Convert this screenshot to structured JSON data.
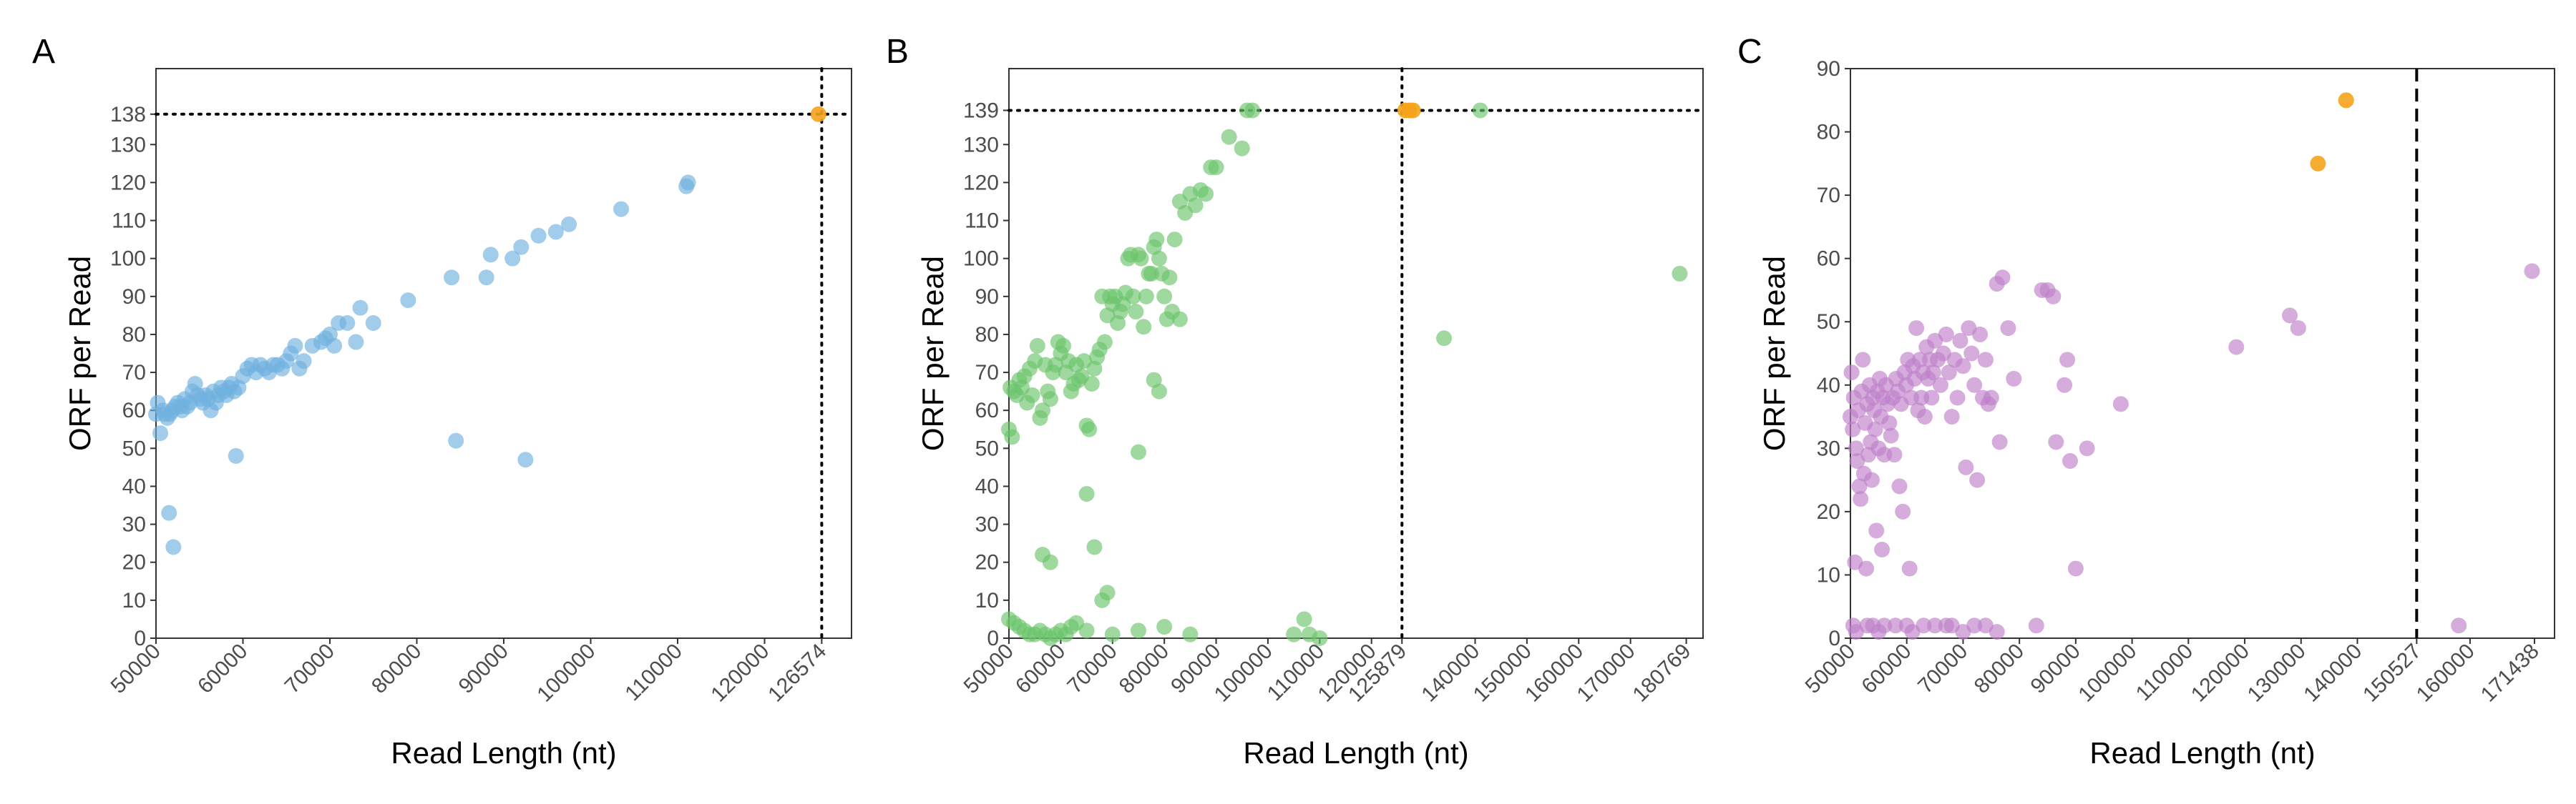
{
  "chart_data": [
    {
      "type": "scatter",
      "panel": "A",
      "xlabel": "Read Length (nt)",
      "ylabel": "ORF per Read",
      "xlim": [
        50000,
        130000
      ],
      "ylim": [
        0,
        150
      ],
      "x_ticks": [
        "50000",
        "60000",
        "70000",
        "80000",
        "90000",
        "100000",
        "110000",
        "120000",
        "126574"
      ],
      "x_tick_values": [
        50000,
        60000,
        70000,
        80000,
        90000,
        100000,
        110000,
        120000,
        126574
      ],
      "y_ticks": [
        "0",
        "10",
        "20",
        "30",
        "40",
        "50",
        "60",
        "70",
        "80",
        "90",
        "100",
        "110",
        "120",
        "130",
        "138"
      ],
      "y_tick_values": [
        0,
        10,
        20,
        30,
        40,
        50,
        60,
        70,
        80,
        90,
        100,
        110,
        120,
        130,
        138
      ],
      "ref_x": 126574,
      "ref_y": 138,
      "ref_style": "dotted",
      "colors": {
        "points": "#6fb0de",
        "highlight": "#f5a31a"
      },
      "highlight_points": [
        [
          126200,
          138
        ]
      ],
      "points": [
        [
          50000,
          59
        ],
        [
          50200,
          62
        ],
        [
          50500,
          54
        ],
        [
          50800,
          60
        ],
        [
          51000,
          59
        ],
        [
          51300,
          58
        ],
        [
          51600,
          59
        ],
        [
          51900,
          60
        ],
        [
          52200,
          61
        ],
        [
          52500,
          62
        ],
        [
          52800,
          61
        ],
        [
          53000,
          60
        ],
        [
          53300,
          63
        ],
        [
          53600,
          61
        ],
        [
          53900,
          62
        ],
        [
          54200,
          65
        ],
        [
          54500,
          67
        ],
        [
          54800,
          64
        ],
        [
          55100,
          63
        ],
        [
          55400,
          62
        ],
        [
          55700,
          64
        ],
        [
          56000,
          63
        ],
        [
          56300,
          60
        ],
        [
          56600,
          65
        ],
        [
          56900,
          62
        ],
        [
          57200,
          64
        ],
        [
          57500,
          66
        ],
        [
          57800,
          65
        ],
        [
          58100,
          64
        ],
        [
          58400,
          66
        ],
        [
          58700,
          67
        ],
        [
          59000,
          65
        ],
        [
          59500,
          66
        ],
        [
          60000,
          69
        ],
        [
          60500,
          71
        ],
        [
          61000,
          72
        ],
        [
          61500,
          70
        ],
        [
          62000,
          72
        ],
        [
          62500,
          71
        ],
        [
          63000,
          70
        ],
        [
          63500,
          72
        ],
        [
          64000,
          72
        ],
        [
          64500,
          71
        ],
        [
          65000,
          73
        ],
        [
          65500,
          75
        ],
        [
          66000,
          77
        ],
        [
          66500,
          71
        ],
        [
          67000,
          73
        ],
        [
          68000,
          77
        ],
        [
          69000,
          78
        ],
        [
          69500,
          79
        ],
        [
          70000,
          80
        ],
        [
          70500,
          77
        ],
        [
          71000,
          83
        ],
        [
          72000,
          83
        ],
        [
          73000,
          78
        ],
        [
          73500,
          87
        ],
        [
          75000,
          83
        ],
        [
          79000,
          89
        ],
        [
          84000,
          95
        ],
        [
          88500,
          101
        ],
        [
          88000,
          95
        ],
        [
          91000,
          100
        ],
        [
          92000,
          103
        ],
        [
          94000,
          106
        ],
        [
          96000,
          107
        ],
        [
          97500,
          109
        ],
        [
          103500,
          113
        ],
        [
          111000,
          119
        ],
        [
          111200,
          120
        ],
        [
          51500,
          33
        ],
        [
          52000,
          24
        ],
        [
          59200,
          48
        ],
        [
          84500,
          52
        ],
        [
          92500,
          47
        ]
      ]
    },
    {
      "type": "scatter",
      "panel": "B",
      "xlabel": "Read Length (nt)",
      "ylabel": "ORF per Read",
      "xlim": [
        50000,
        184000
      ],
      "ylim": [
        0,
        150
      ],
      "x_ticks": [
        "50000",
        "60000",
        "70000",
        "80000",
        "90000",
        "100000",
        "110000",
        "120000",
        "125879",
        "140000",
        "150000",
        "160000",
        "170000",
        "180769"
      ],
      "x_tick_values": [
        50000,
        60000,
        70000,
        80000,
        90000,
        100000,
        110000,
        120000,
        125879,
        140000,
        150000,
        160000,
        170000,
        180769
      ],
      "y_ticks": [
        "0",
        "10",
        "20",
        "30",
        "40",
        "50",
        "60",
        "70",
        "80",
        "90",
        "100",
        "110",
        "120",
        "130",
        "139"
      ],
      "y_tick_values": [
        0,
        10,
        20,
        30,
        40,
        50,
        60,
        70,
        80,
        90,
        100,
        110,
        120,
        130,
        139
      ],
      "ref_x": 125879,
      "ref_y": 139,
      "ref_style": "dotted",
      "colors": {
        "points": "#6cc46c",
        "highlight": "#f5a31a"
      },
      "highlight_points": [
        [
          126500,
          139
        ],
        [
          127300,
          139
        ],
        [
          128000,
          139
        ]
      ],
      "points": [
        [
          50000,
          55
        ],
        [
          50300,
          66
        ],
        [
          50600,
          53
        ],
        [
          51000,
          65
        ],
        [
          51500,
          64
        ],
        [
          52000,
          68
        ],
        [
          52500,
          66
        ],
        [
          53000,
          69
        ],
        [
          53500,
          62
        ],
        [
          54000,
          71
        ],
        [
          54500,
          64
        ],
        [
          55000,
          73
        ],
        [
          55500,
          77
        ],
        [
          56000,
          58
        ],
        [
          56500,
          60
        ],
        [
          57000,
          72
        ],
        [
          57500,
          65
        ],
        [
          58000,
          63
        ],
        [
          58500,
          70
        ],
        [
          59000,
          72
        ],
        [
          59500,
          78
        ],
        [
          60000,
          75
        ],
        [
          60500,
          77
        ],
        [
          61000,
          70
        ],
        [
          61500,
          73
        ],
        [
          62000,
          65
        ],
        [
          62500,
          67
        ],
        [
          63000,
          72
        ],
        [
          63500,
          68
        ],
        [
          64000,
          69
        ],
        [
          64500,
          73
        ],
        [
          65000,
          56
        ],
        [
          65500,
          55
        ],
        [
          66000,
          67
        ],
        [
          66500,
          71
        ],
        [
          67000,
          74
        ],
        [
          67500,
          76
        ],
        [
          68000,
          90
        ],
        [
          68500,
          78
        ],
        [
          69000,
          85
        ],
        [
          69500,
          90
        ],
        [
          70000,
          88
        ],
        [
          70500,
          90
        ],
        [
          71000,
          83
        ],
        [
          71500,
          86
        ],
        [
          72000,
          88
        ],
        [
          72500,
          91
        ],
        [
          73000,
          100
        ],
        [
          73500,
          101
        ],
        [
          74000,
          90
        ],
        [
          74500,
          86
        ],
        [
          75000,
          101
        ],
        [
          75500,
          100
        ],
        [
          76000,
          82
        ],
        [
          76500,
          90
        ],
        [
          77000,
          96
        ],
        [
          77500,
          96
        ],
        [
          78000,
          103
        ],
        [
          78500,
          105
        ],
        [
          79000,
          100
        ],
        [
          79500,
          96
        ],
        [
          80000,
          90
        ],
        [
          80500,
          84
        ],
        [
          81000,
          95
        ],
        [
          81500,
          86
        ],
        [
          82000,
          105
        ],
        [
          83000,
          115
        ],
        [
          84000,
          112
        ],
        [
          85000,
          117
        ],
        [
          86000,
          114
        ],
        [
          87000,
          118
        ],
        [
          88000,
          117
        ],
        [
          89000,
          124
        ],
        [
          90000,
          124
        ],
        [
          92500,
          132
        ],
        [
          95000,
          129
        ],
        [
          96000,
          139
        ],
        [
          97000,
          139
        ],
        [
          141000,
          139
        ],
        [
          134000,
          79
        ],
        [
          179500,
          96
        ],
        [
          75000,
          49
        ],
        [
          78000,
          68
        ],
        [
          79000,
          65
        ],
        [
          83000,
          84
        ],
        [
          65000,
          38
        ],
        [
          66500,
          24
        ],
        [
          56500,
          22
        ],
        [
          58000,
          20
        ],
        [
          69000,
          12
        ],
        [
          68000,
          10
        ],
        [
          50000,
          5
        ],
        [
          51000,
          4
        ],
        [
          52000,
          3
        ],
        [
          53000,
          2
        ],
        [
          54000,
          1
        ],
        [
          55000,
          1
        ],
        [
          56000,
          2
        ],
        [
          57000,
          1
        ],
        [
          58000,
          0
        ],
        [
          59000,
          1
        ],
        [
          60000,
          2
        ],
        [
          61000,
          1
        ],
        [
          62000,
          3
        ],
        [
          63000,
          4
        ],
        [
          65000,
          2
        ],
        [
          70000,
          1
        ],
        [
          75000,
          2
        ],
        [
          80000,
          3
        ],
        [
          85000,
          1
        ],
        [
          105000,
          1
        ],
        [
          107000,
          5
        ],
        [
          108000,
          1
        ],
        [
          110000,
          0
        ]
      ]
    },
    {
      "type": "scatter",
      "panel": "C",
      "xlabel": "Read Length (nt)",
      "ylabel": "ORF per Read",
      "xlim": [
        50000,
        175000
      ],
      "ylim": [
        0,
        90
      ],
      "x_ticks": [
        "50000",
        "60000",
        "70000",
        "80000",
        "90000",
        "100000",
        "110000",
        "120000",
        "130000",
        "140000",
        "150527",
        "160000",
        "171438"
      ],
      "x_tick_values": [
        50000,
        60000,
        70000,
        80000,
        90000,
        100000,
        110000,
        120000,
        130000,
        140000,
        150527,
        160000,
        171438
      ],
      "y_ticks": [
        "0",
        "10",
        "20",
        "30",
        "40",
        "50",
        "60",
        "70",
        "80",
        "90"
      ],
      "y_tick_values": [
        0,
        10,
        20,
        30,
        40,
        50,
        60,
        70,
        80,
        90
      ],
      "ref_x": 150527,
      "ref_style": "dashed",
      "colors": {
        "points": "#bf7fc9",
        "highlight": "#f5a31a"
      },
      "highlight_points": [
        [
          133000,
          75
        ],
        [
          138000,
          85
        ]
      ],
      "points": [
        [
          50000,
          35
        ],
        [
          50200,
          42
        ],
        [
          50400,
          33
        ],
        [
          50600,
          38
        ],
        [
          50800,
          12
        ],
        [
          51000,
          30
        ],
        [
          51200,
          28
        ],
        [
          51400,
          36
        ],
        [
          51600,
          24
        ],
        [
          51800,
          22
        ],
        [
          52000,
          39
        ],
        [
          52200,
          44
        ],
        [
          52400,
          26
        ],
        [
          52600,
          34
        ],
        [
          52800,
          11
        ],
        [
          53000,
          37
        ],
        [
          53200,
          29
        ],
        [
          53400,
          40
        ],
        [
          53600,
          31
        ],
        [
          53800,
          25
        ],
        [
          54000,
          38
        ],
        [
          54200,
          36
        ],
        [
          54400,
          33
        ],
        [
          54600,
          17
        ],
        [
          54800,
          39
        ],
        [
          55000,
          30
        ],
        [
          55200,
          41
        ],
        [
          55400,
          35
        ],
        [
          55600,
          14
        ],
        [
          55800,
          38
        ],
        [
          56000,
          29
        ],
        [
          56300,
          40
        ],
        [
          56600,
          37
        ],
        [
          56900,
          34
        ],
        [
          57200,
          32
        ],
        [
          57500,
          38
        ],
        [
          57800,
          29
        ],
        [
          58100,
          41
        ],
        [
          58400,
          39
        ],
        [
          58700,
          24
        ],
        [
          59000,
          37
        ],
        [
          59300,
          20
        ],
        [
          59600,
          42
        ],
        [
          59900,
          40
        ],
        [
          60200,
          44
        ],
        [
          60500,
          11
        ],
        [
          60800,
          38
        ],
        [
          61100,
          43
        ],
        [
          61400,
          41
        ],
        [
          61700,
          49
        ],
        [
          62000,
          36
        ],
        [
          62300,
          44
        ],
        [
          62600,
          38
        ],
        [
          62900,
          42
        ],
        [
          63200,
          35
        ],
        [
          63500,
          46
        ],
        [
          63800,
          41
        ],
        [
          64100,
          44
        ],
        [
          64400,
          38
        ],
        [
          64700,
          42
        ],
        [
          65000,
          47
        ],
        [
          65500,
          44
        ],
        [
          66000,
          40
        ],
        [
          66500,
          45
        ],
        [
          67000,
          48
        ],
        [
          67500,
          42
        ],
        [
          68000,
          35
        ],
        [
          68500,
          44
        ],
        [
          69000,
          38
        ],
        [
          69500,
          47
        ],
        [
          70000,
          43
        ],
        [
          70500,
          27
        ],
        [
          71000,
          49
        ],
        [
          71500,
          45
        ],
        [
          72000,
          40
        ],
        [
          72500,
          25
        ],
        [
          73000,
          48
        ],
        [
          73500,
          38
        ],
        [
          74000,
          44
        ],
        [
          75000,
          38
        ],
        [
          76000,
          56
        ],
        [
          77000,
          57
        ],
        [
          78000,
          49
        ],
        [
          79000,
          41
        ],
        [
          84000,
          55
        ],
        [
          85000,
          55
        ],
        [
          86000,
          54
        ],
        [
          86500,
          31
        ],
        [
          88000,
          40
        ],
        [
          88500,
          44
        ],
        [
          89000,
          28
        ],
        [
          90000,
          11
        ],
        [
          92000,
          30
        ],
        [
          98000,
          37
        ],
        [
          118500,
          46
        ],
        [
          128000,
          51
        ],
        [
          129500,
          49
        ],
        [
          171000,
          58
        ],
        [
          76500,
          31
        ],
        [
          74500,
          37
        ],
        [
          50500,
          2
        ],
        [
          51000,
          1
        ],
        [
          53000,
          2
        ],
        [
          54000,
          2
        ],
        [
          55000,
          1
        ],
        [
          56000,
          2
        ],
        [
          58000,
          2
        ],
        [
          60000,
          2
        ],
        [
          61000,
          1
        ],
        [
          63000,
          2
        ],
        [
          65000,
          2
        ],
        [
          67000,
          2
        ],
        [
          68000,
          2
        ],
        [
          70000,
          1
        ],
        [
          72000,
          2
        ],
        [
          74000,
          2
        ],
        [
          76000,
          1
        ],
        [
          83000,
          2
        ],
        [
          158000,
          2
        ]
      ]
    }
  ]
}
